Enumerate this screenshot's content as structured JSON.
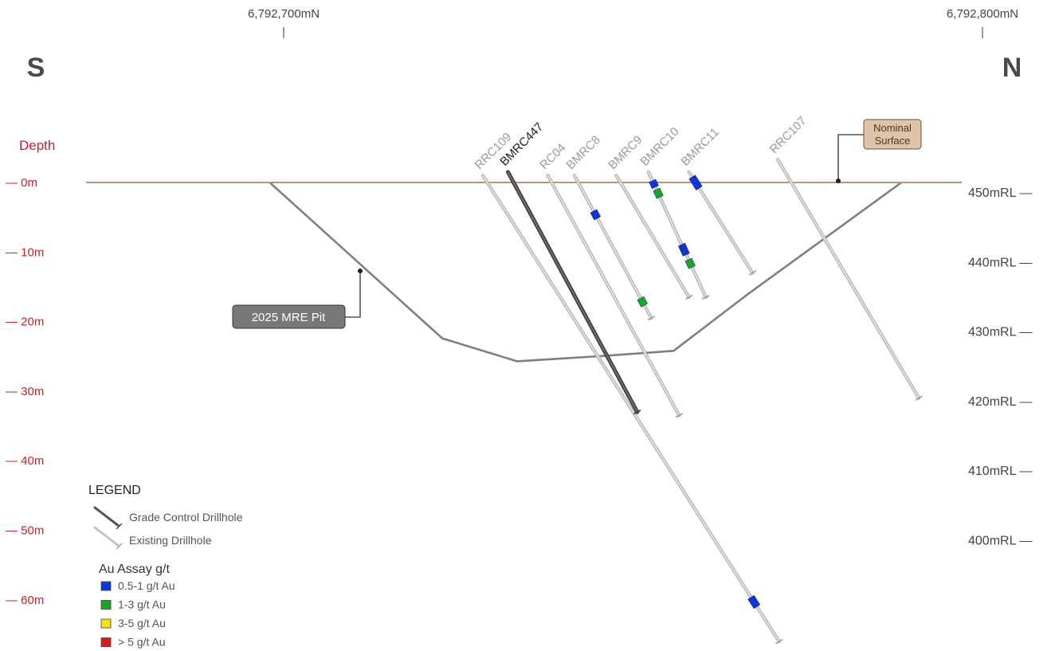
{
  "northings": [
    {
      "label": "6,792,700mN",
      "chainage_m": 0
    },
    {
      "label": "6,792,800mN",
      "chainage_m": 100
    }
  ],
  "directions": {
    "left": "S",
    "right": "N"
  },
  "depth_axis": {
    "title": "Depth",
    "ticks": [
      {
        "label": "— 0m",
        "depth_m": 0
      },
      {
        "label": "— 10m",
        "depth_m": 10
      },
      {
        "label": "— 20m",
        "depth_m": 20
      },
      {
        "label": "— 30m",
        "depth_m": 30
      },
      {
        "label": "— 40m",
        "depth_m": 40
      },
      {
        "label": "— 50m",
        "depth_m": 50
      },
      {
        "label": "— 60m",
        "depth_m": 60
      }
    ]
  },
  "rl_axis": {
    "ticks": [
      {
        "label": "450mRL —",
        "rl": 450
      },
      {
        "label": "440mRL —",
        "rl": 440
      },
      {
        "label": "430mRL —",
        "rl": 430
      },
      {
        "label": "420mRL —",
        "rl": 420
      },
      {
        "label": "410mRL —",
        "rl": 410
      },
      {
        "label": "400mRL —",
        "rl": 400
      }
    ]
  },
  "surface": {
    "label": "Nominal Surface",
    "line_1": "Nominal",
    "line_2": "Surface",
    "color": "#b8957a"
  },
  "pit": {
    "label": "2025 MRE Pit",
    "color": "#808080",
    "outline": [
      {
        "chainage": -2,
        "depth": 0
      },
      {
        "chainage": 22.7,
        "depth": 22.4
      },
      {
        "chainage": 33.4,
        "depth": 25.7
      },
      {
        "chainage": 46.2,
        "depth": 24.9
      },
      {
        "chainage": 55.8,
        "depth": 24.2
      },
      {
        "chainage": 66.5,
        "depth": 16
      },
      {
        "chainage": 88.4,
        "depth": 0
      }
    ]
  },
  "drillholes": [
    {
      "name": "RRC109",
      "type": "existing",
      "collar": {
        "chainage": 28.5,
        "depth": -1
      },
      "toe": {
        "chainage": 70.9,
        "depth": 66
      },
      "assays": [
        {
          "grade": "0.5-1",
          "from": 0.905,
          "to": 0.925
        }
      ]
    },
    {
      "name": "BMRC447",
      "type": "grade_control",
      "collar": {
        "chainage": 32.1,
        "depth": -1.5
      },
      "toe": {
        "chainage": 50.6,
        "depth": 33
      },
      "assays": []
    },
    {
      "name": "RC04",
      "type": "existing",
      "collar": {
        "chainage": 37.8,
        "depth": -1
      },
      "toe": {
        "chainage": 56.6,
        "depth": 33.5
      },
      "assays": []
    },
    {
      "name": "BMRC8",
      "type": "existing",
      "collar": {
        "chainage": 41.6,
        "depth": -1
      },
      "toe": {
        "chainage": 52.6,
        "depth": 19.5
      },
      "assays": [
        {
          "grade": "0.5-1",
          "from": 0.25,
          "to": 0.3
        },
        {
          "grade": "1-3",
          "from": 0.86,
          "to": 0.91
        }
      ]
    },
    {
      "name": "BMRC9",
      "type": "existing",
      "collar": {
        "chainage": 47.6,
        "depth": -1
      },
      "toe": {
        "chainage": 58,
        "depth": 16.5
      },
      "assays": []
    },
    {
      "name": "BMRC10",
      "type": "existing",
      "collar": {
        "chainage": 52.2,
        "depth": -1.5
      },
      "toe": {
        "chainage": 60.4,
        "depth": 16.5
      },
      "assays": [
        {
          "grade": "0.5-1",
          "from": 0.07,
          "to": 0.12
        },
        {
          "grade": "1-3",
          "from": 0.14,
          "to": 0.2
        },
        {
          "grade": "0.5-1",
          "from": 0.58,
          "to": 0.66
        },
        {
          "grade": "1-3",
          "from": 0.7,
          "to": 0.76
        }
      ]
    },
    {
      "name": "BMRC11",
      "type": "existing",
      "collar": {
        "chainage": 58,
        "depth": -1.5
      },
      "toe": {
        "chainage": 67.1,
        "depth": 13
      },
      "assays": [
        {
          "grade": "0.5-1",
          "from": 0.05,
          "to": 0.16
        }
      ]
    },
    {
      "name": "RRC107",
      "type": "existing",
      "collar": {
        "chainage": 70.7,
        "depth": -3.3
      },
      "toe": {
        "chainage": 90.9,
        "depth": 31
      },
      "assays": []
    }
  ],
  "legend": {
    "title": "LEGEND",
    "grade_control": "Grade Control Drillhole",
    "existing": "Existing Drillhole",
    "assay_title": "Au Assay g/t",
    "assays": [
      {
        "grade": "0.5-1",
        "label": "0.5-1 g/t Au",
        "color": "#1035d6"
      },
      {
        "grade": "1-3",
        "label": "1-3 g/t Au",
        "color": "#1aa52a"
      },
      {
        "grade": "3-5",
        "label": "3-5 g/t Au",
        "color": "#f2e21a"
      },
      {
        "grade": ">5",
        "label": "> 5 g/t Au",
        "color": "#d81b1b"
      }
    ]
  }
}
